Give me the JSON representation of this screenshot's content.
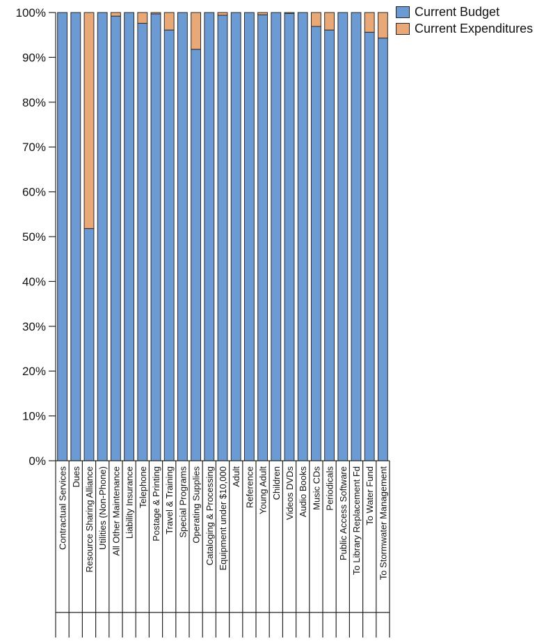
{
  "chart_data": {
    "type": "bar",
    "stacked": true,
    "percent": true,
    "ylim": [
      0,
      100
    ],
    "yticks": [
      0,
      10,
      20,
      30,
      40,
      50,
      60,
      70,
      80,
      90,
      100
    ],
    "ytick_labels": [
      "0%",
      "10%",
      "20%",
      "30%",
      "40%",
      "50%",
      "60%",
      "70%",
      "80%",
      "90%",
      "100%"
    ],
    "legend_position": "top-right",
    "grid": false,
    "categories": [
      "Contractual Services",
      "Dues",
      "Resource Sharing Alliance",
      "Utilities (Non-Phone)",
      "All Other Maintenance",
      "Liability Insurance",
      "Telephone",
      "Postage & Printing",
      "Travel & Training",
      "Special Programs",
      "Operating Supplies",
      "Cataloging & Processing",
      "Equipment under $10,000",
      "Adult",
      "Reference",
      "Young Adult",
      "Children",
      "Videos DVDs",
      "Audio Books",
      "Music CDs",
      "Periodicals",
      "Public Access Software",
      "To Library Replacement Fd",
      "To Water Fund",
      "To Stormwater Management"
    ],
    "series": [
      {
        "name": "Current Budget",
        "color": "#6b9bd2",
        "values": [
          100,
          100,
          51.8,
          100,
          99.2,
          100,
          97.6,
          99.7,
          96.1,
          100,
          91.8,
          100,
          99.4,
          100,
          100,
          99.5,
          100,
          99.8,
          100,
          96.9,
          96.1,
          100,
          100,
          95.6,
          94.3
        ]
      },
      {
        "name": "Current Expenditures",
        "color": "#e8a877",
        "values": [
          0,
          0,
          48.2,
          0,
          0.8,
          0,
          2.4,
          0.3,
          3.9,
          0,
          8.2,
          0,
          0.6,
          0,
          0,
          0.5,
          0,
          0.2,
          0,
          3.1,
          3.9,
          0,
          0,
          4.4,
          5.7
        ]
      }
    ]
  }
}
